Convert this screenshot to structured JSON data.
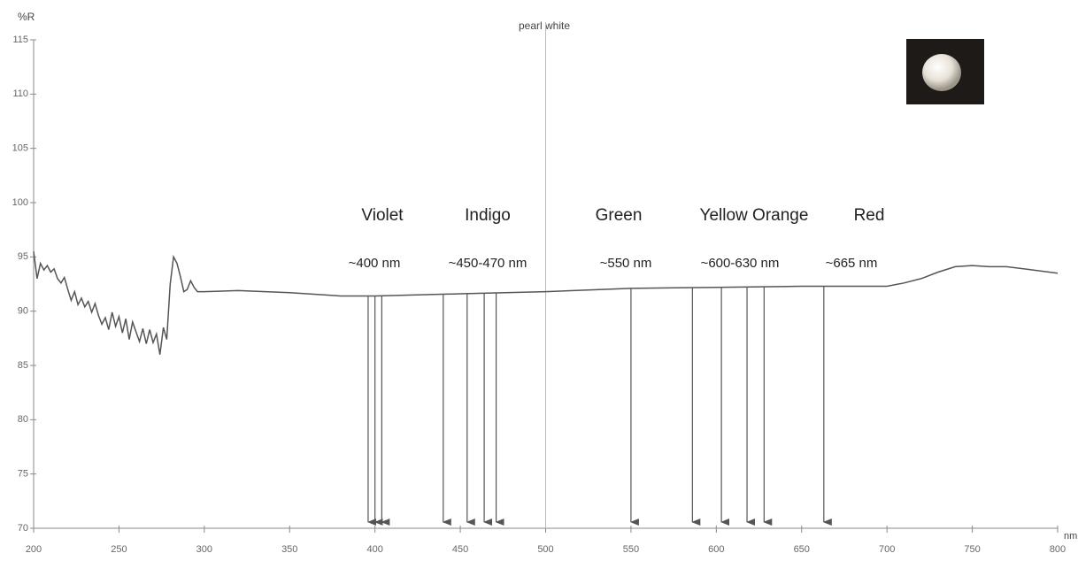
{
  "chart_data": {
    "type": "line",
    "title": "pearl white",
    "y_label": "%R",
    "x_label": "nm",
    "color": "#555555",
    "xlim": [
      200,
      800
    ],
    "ylim": [
      70,
      115
    ],
    "xticks": [
      200,
      250,
      300,
      350,
      400,
      450,
      500,
      550,
      600,
      650,
      700,
      750,
      800
    ],
    "yticks": [
      70,
      75,
      80,
      85,
      90,
      95,
      100,
      105,
      110,
      115
    ],
    "vline": 500,
    "x": [
      200,
      202,
      204,
      206,
      208,
      210,
      212,
      214,
      216,
      218,
      220,
      222,
      224,
      226,
      228,
      230,
      232,
      234,
      236,
      238,
      240,
      242,
      244,
      246,
      248,
      250,
      252,
      254,
      256,
      258,
      260,
      262,
      264,
      266,
      268,
      270,
      272,
      274,
      276,
      278,
      280,
      282,
      284,
      286,
      288,
      290,
      292,
      294,
      296,
      300,
      320,
      350,
      380,
      400,
      450,
      500,
      550,
      600,
      650,
      700,
      710,
      720,
      730,
      740,
      750,
      760,
      770,
      780,
      790,
      800
    ],
    "values": [
      95.5,
      93.0,
      94.4,
      93.8,
      94.2,
      93.6,
      93.9,
      93.0,
      92.6,
      93.1,
      92.0,
      91.0,
      91.8,
      90.6,
      91.2,
      90.4,
      90.9,
      89.9,
      90.7,
      89.6,
      88.8,
      89.4,
      88.3,
      89.9,
      88.6,
      89.5,
      88.0,
      89.3,
      87.4,
      89.0,
      88.1,
      87.2,
      88.4,
      87.0,
      88.3,
      87.1,
      87.9,
      86.0,
      88.5,
      87.4,
      92.5,
      95.0,
      94.4,
      93.2,
      91.8,
      92.0,
      92.8,
      92.2,
      91.8,
      91.8,
      91.9,
      91.7,
      91.4,
      91.4,
      91.6,
      91.8,
      92.1,
      92.2,
      92.3,
      92.3,
      92.6,
      93.0,
      93.6,
      94.1,
      94.2,
      94.1,
      94.1,
      93.9,
      93.7,
      93.5
    ],
    "annotations": [
      {
        "label": "Violet",
        "range": "~400 nm",
        "arrows": [
          396,
          400,
          404
        ]
      },
      {
        "label": "Indigo",
        "range": "~450-470 nm",
        "arrows": [
          440,
          454,
          464,
          471
        ]
      },
      {
        "label": "Green",
        "range": "~550 nm",
        "arrows": [
          550
        ]
      },
      {
        "label": "Yellow Orange",
        "range": "~600-630 nm",
        "arrows": [
          586,
          603,
          618,
          628
        ]
      },
      {
        "label": "Red",
        "range": "~665 nm",
        "arrows": [
          663
        ]
      }
    ]
  }
}
